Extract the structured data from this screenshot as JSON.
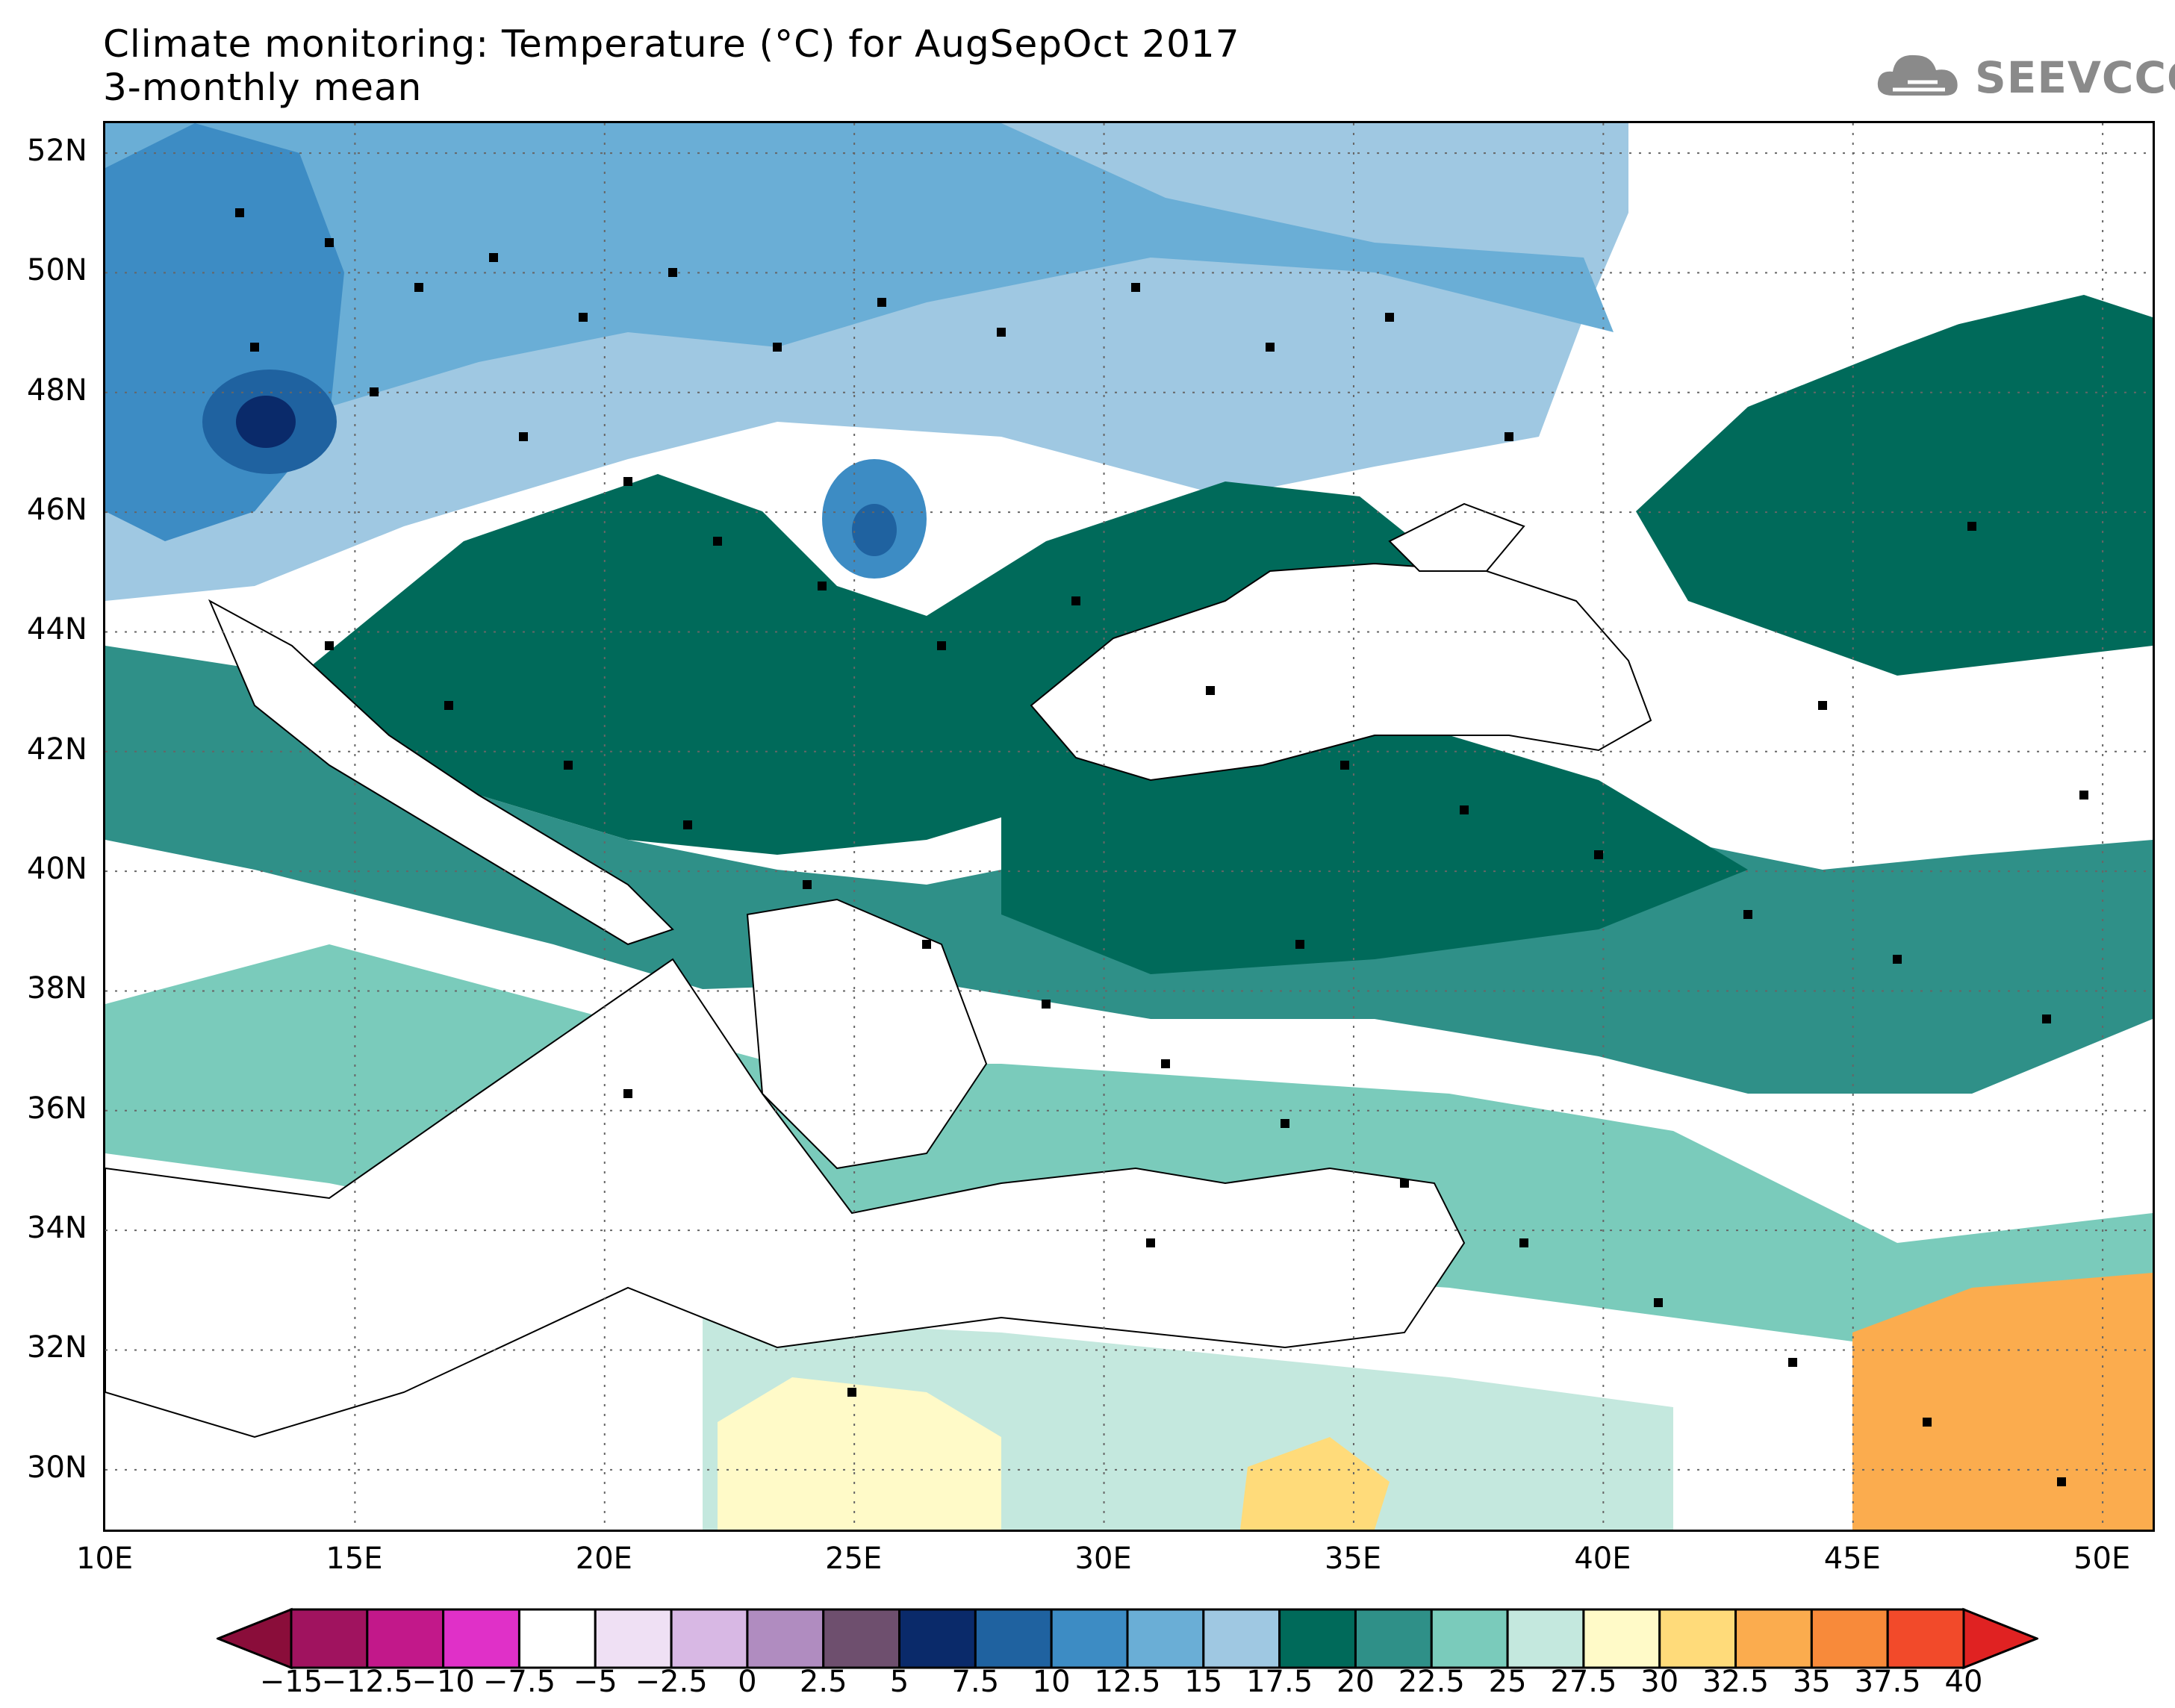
{
  "header": {
    "title_line1": "Climate monitoring: Temperature (°C) for AugSepOct 2017",
    "title_line2": "3-monthly mean",
    "logo_text": "SEEVCCC"
  },
  "map": {
    "lon_range": [
      10,
      51
    ],
    "lat_range": [
      29,
      52.5
    ],
    "lat_labels": [
      "52N",
      "50N",
      "48N",
      "46N",
      "44N",
      "42N",
      "40N",
      "38N",
      "36N",
      "34N",
      "32N",
      "30N"
    ],
    "lat_values": [
      52,
      50,
      48,
      46,
      44,
      42,
      40,
      38,
      36,
      34,
      32,
      30
    ],
    "lon_labels": [
      "10E",
      "15E",
      "20E",
      "25E",
      "30E",
      "35E",
      "40E",
      "45E",
      "50E"
    ],
    "lon_values": [
      10,
      15,
      20,
      25,
      30,
      35,
      40,
      45,
      50
    ]
  },
  "colorbar": {
    "labels": [
      "−15",
      "−12.5",
      "−10",
      "−7.5",
      "−5",
      "−2.5",
      "0",
      "2.5",
      "5",
      "7.5",
      "10",
      "12.5",
      "15",
      "17.5",
      "20",
      "22.5",
      "25",
      "27.5",
      "30",
      "32.5",
      "35",
      "37.5",
      "40"
    ],
    "colors": [
      "#a0135f",
      "#c2188a",
      "#e030c8",
      "#ffffff",
      "#efe0f4",
      "#d8b8e4",
      "#b08cc0",
      "#6e4f6e",
      "#0a2a6a",
      "#1f62a0",
      "#3d8cc4",
      "#6aaed6",
      "#9fc8e2",
      "#006a5a",
      "#2f9088",
      "#7acbbb",
      "#c4e8de",
      "#fffac8",
      "#ffdb7a",
      "#fbac4e",
      "#f88a3a",
      "#f24a2a"
    ],
    "end_low_color": "#8a0d3a",
    "end_high_color": "#e02222"
  }
}
